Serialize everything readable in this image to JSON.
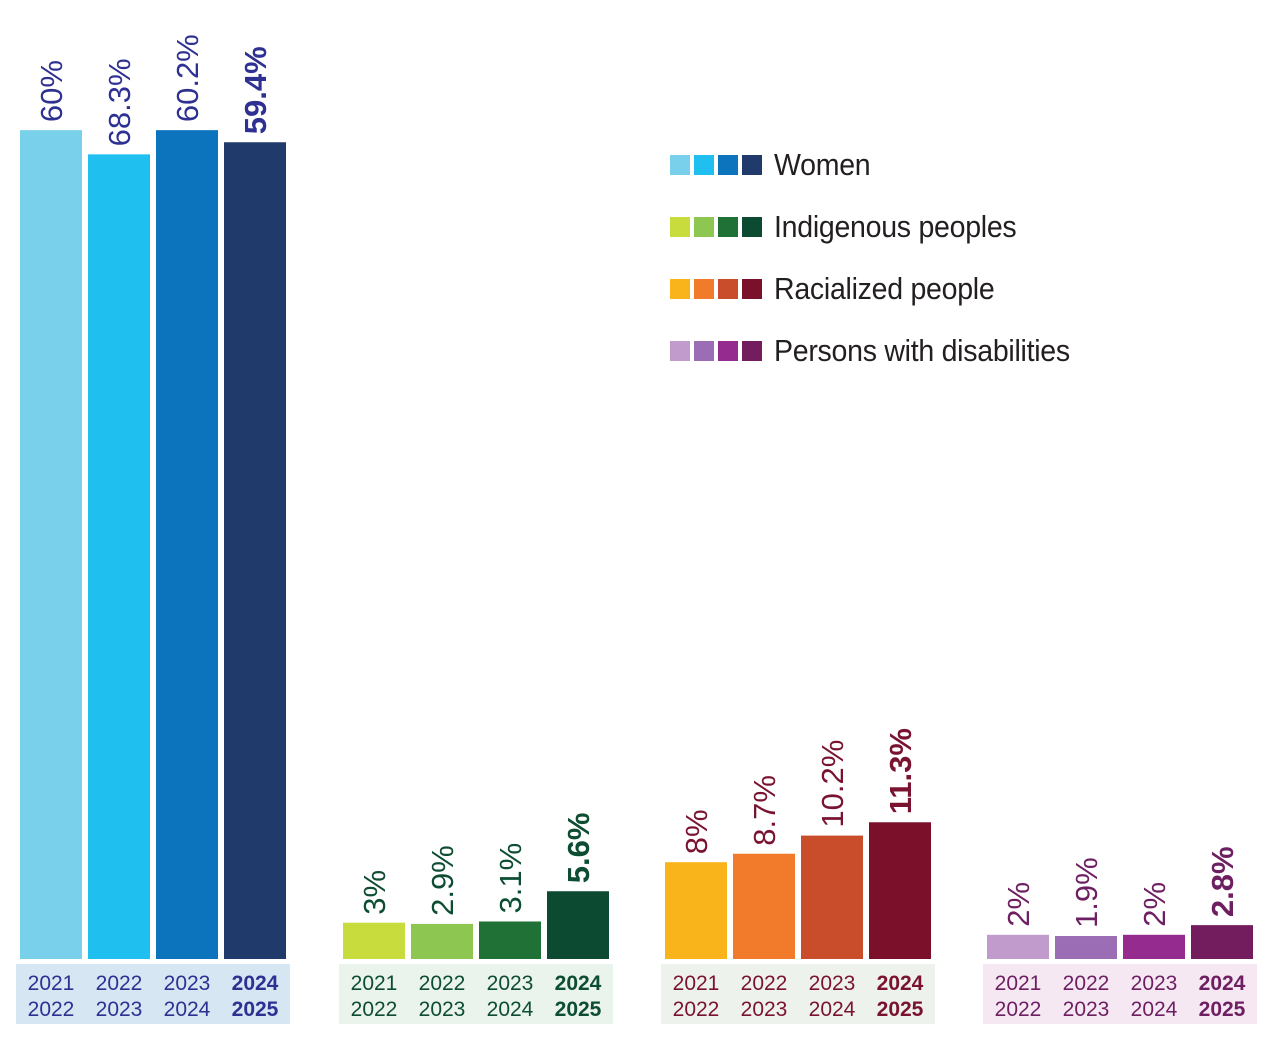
{
  "chart_data": {
    "type": "bar",
    "ylim": [
      0,
      70
    ],
    "legend": {
      "placement": "top-right"
    },
    "groups": [
      {
        "name": "Women",
        "label_color": "#2e3192",
        "bg": "#d6e6f3",
        "colors": [
          "#79d0ea",
          "#1fbff0",
          "#0c74bc",
          "#1f3a6b"
        ],
        "categories": [
          [
            "2021",
            "2022"
          ],
          [
            "2022",
            "2023"
          ],
          [
            "2023",
            "2024"
          ],
          [
            "2024",
            "2025"
          ]
        ],
        "values": [
          60,
          68.3,
          60.2,
          59.4
        ],
        "labels": [
          "60%",
          "68.3%",
          "60.2%",
          "59.4%"
        ],
        "display_scale": [
          68.5,
          66.5,
          68.5,
          67.5
        ]
      },
      {
        "name": "Indigenous peoples",
        "label_color": "#0d4d32",
        "bg": "#eaf3ec",
        "colors": [
          "#c8dc3e",
          "#8dc751",
          "#1f7135",
          "#0c4a31"
        ],
        "categories": [
          [
            "2021",
            "2022"
          ],
          [
            "2022",
            "2023"
          ],
          [
            "2023",
            "2024"
          ],
          [
            "2024",
            "2025"
          ]
        ],
        "values": [
          3,
          2.9,
          3.1,
          5.6
        ],
        "labels": [
          "3%",
          "2.9%",
          "3.1%",
          "5.6%"
        ]
      },
      {
        "name": "Racialized people",
        "label_color": "#7a1330",
        "bg": "#eef2ec",
        "colors": [
          "#f9b41b",
          "#f27b2b",
          "#c94d2a",
          "#7a1029"
        ],
        "categories": [
          [
            "2021",
            "2022"
          ],
          [
            "2022",
            "2023"
          ],
          [
            "2023",
            "2024"
          ],
          [
            "2024",
            "2025"
          ]
        ],
        "values": [
          8,
          8.7,
          10.2,
          11.3
        ],
        "labels": [
          "8%",
          "8.7%",
          "10.2%",
          "11.3%"
        ]
      },
      {
        "name": "Persons with disabilities",
        "label_color": "#6d1f61",
        "bg": "#f6e8f3",
        "colors": [
          "#c19bcb",
          "#9b6db4",
          "#952b8e",
          "#731d5f"
        ],
        "categories": [
          [
            "2021",
            "2022"
          ],
          [
            "2022",
            "2023"
          ],
          [
            "2023",
            "2024"
          ],
          [
            "2024",
            "2025"
          ]
        ],
        "values": [
          2,
          1.9,
          2,
          2.8
        ],
        "labels": [
          "2%",
          "1.9%",
          "2%",
          "2.8%"
        ]
      }
    ]
  },
  "legend": [
    {
      "label": "Women",
      "colors": [
        "#79d0ea",
        "#1fbff0",
        "#0c74bc",
        "#1f3a6b"
      ]
    },
    {
      "label": "Indigenous peoples",
      "colors": [
        "#c8dc3e",
        "#8dc751",
        "#1f7135",
        "#0c4a31"
      ]
    },
    {
      "label": "Racialized people",
      "colors": [
        "#f9b41b",
        "#f27b2b",
        "#c94d2a",
        "#7a1029"
      ]
    },
    {
      "label": "Persons with disabilities",
      "colors": [
        "#c19bcb",
        "#9b6db4",
        "#952b8e",
        "#731d5f"
      ]
    }
  ]
}
